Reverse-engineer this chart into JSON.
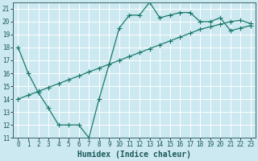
{
  "line1_x": [
    0,
    1,
    2,
    3,
    4,
    5,
    6,
    7,
    8,
    9,
    10,
    11,
    12,
    13,
    14,
    15,
    16,
    17,
    18,
    19,
    20,
    21,
    22,
    23
  ],
  "line1_y": [
    18,
    16,
    14.5,
    13.3,
    12,
    12,
    12,
    11,
    14,
    16.7,
    19.5,
    20.5,
    20.5,
    21.5,
    20.3,
    20.5,
    20.7,
    20.7,
    20,
    20,
    20.3,
    19.3,
    19.5,
    19.7
  ],
  "line2_x": [
    0,
    1,
    2,
    3,
    4,
    5,
    6,
    7,
    8,
    9,
    10,
    11,
    12,
    13,
    14,
    15,
    16,
    17,
    18,
    19,
    20,
    21,
    22,
    23
  ],
  "line2_y": [
    14.0,
    14.3,
    14.6,
    14.9,
    15.2,
    15.5,
    15.8,
    16.1,
    16.4,
    16.7,
    17.0,
    17.3,
    17.6,
    17.9,
    18.2,
    18.5,
    18.8,
    19.1,
    19.4,
    19.6,
    19.8,
    20.0,
    20.1,
    19.85
  ],
  "color": "#1a7a6a",
  "bg_color": "#cce8f0",
  "grid_color": "#ffffff",
  "xlabel": "Humidex (Indice chaleur)",
  "xlim": [
    -0.5,
    23.5
  ],
  "ylim": [
    11,
    21.5
  ],
  "xticks": [
    0,
    1,
    2,
    3,
    4,
    5,
    6,
    7,
    8,
    9,
    10,
    11,
    12,
    13,
    14,
    15,
    16,
    17,
    18,
    19,
    20,
    21,
    22,
    23
  ],
  "yticks": [
    11,
    12,
    13,
    14,
    15,
    16,
    17,
    18,
    19,
    20,
    21
  ],
  "marker": "+",
  "markersize": 4,
  "linewidth": 0.9,
  "xlabel_fontsize": 7,
  "tick_fontsize": 5.5
}
